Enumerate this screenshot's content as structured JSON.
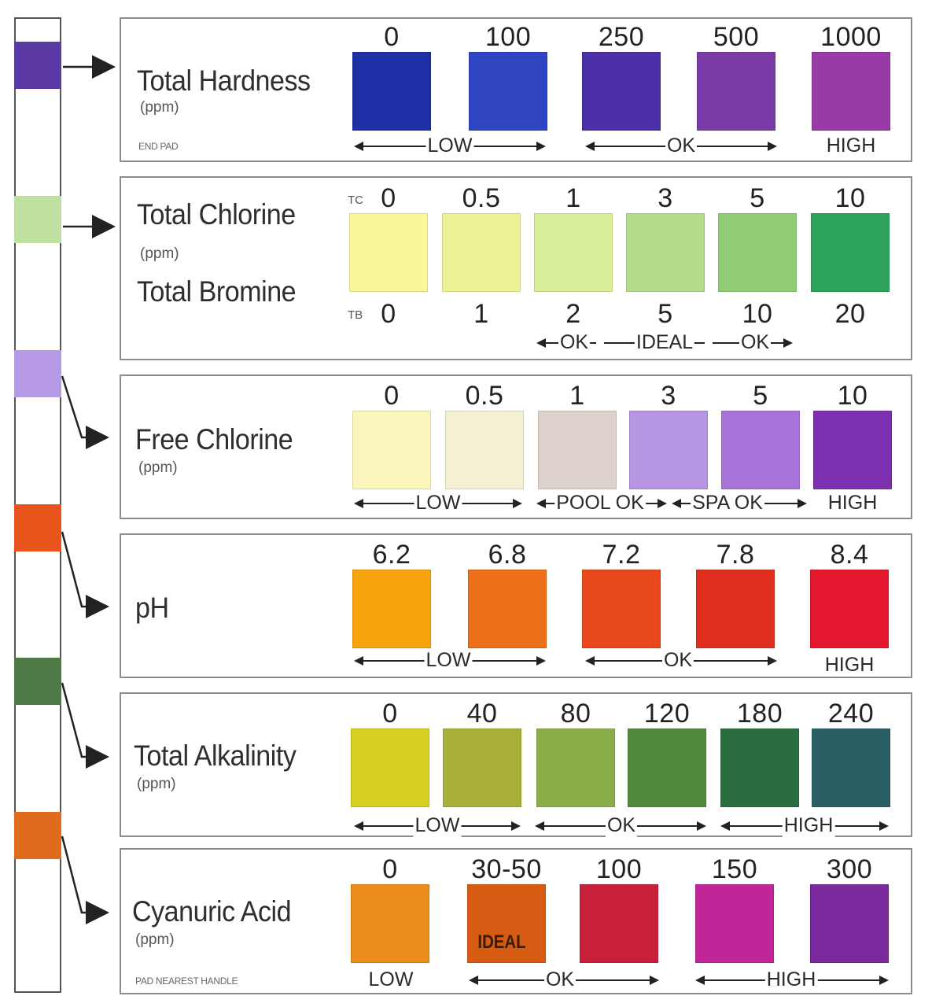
{
  "strip": {
    "pads": [
      {
        "name": "total-hardness",
        "color": "#5b3aa6"
      },
      {
        "name": "total-chlorine",
        "color": "#bfe0a0"
      },
      {
        "name": "free-chlorine",
        "color": "#b79ae6"
      },
      {
        "name": "ph",
        "color": "#e8551c"
      },
      {
        "name": "total-alkalinity",
        "color": "#4f7a46"
      },
      {
        "name": "cyanuric-acid",
        "color": "#e06a1e"
      }
    ]
  },
  "panels": [
    {
      "key": "total_hardness",
      "title": "Total Hardness",
      "unit": "(ppm)",
      "note": "END PAD",
      "values": [
        "0",
        "100",
        "250",
        "500",
        "1000"
      ],
      "colors": [
        "#1d2fa4",
        "#2f45c2",
        "#4a2fa8",
        "#7a3aa6",
        "#9a3aa8"
      ],
      "ranges": [
        "LOW",
        "OK",
        "HIGH"
      ]
    },
    {
      "key": "total_chlorine_bromine",
      "title": "Total Chlorine",
      "unit": "(ppm)",
      "title2": "Total Bromine",
      "tc_prefix": "TC",
      "tb_prefix": "TB",
      "tc_values": [
        "0",
        "0.5",
        "1",
        "3",
        "5",
        "10"
      ],
      "tb_values": [
        "0",
        "1",
        "2",
        "5",
        "10",
        "20"
      ],
      "colors": [
        "#f8f79a",
        "#eef296",
        "#d9ee98",
        "#b5dc8d",
        "#8fcc74",
        "#2ea35c"
      ],
      "ranges": [
        "OK",
        "IDEAL",
        "OK"
      ]
    },
    {
      "key": "free_chlorine",
      "title": "Free Chlorine",
      "unit": "(ppm)",
      "values": [
        "0",
        "0.5",
        "1",
        "3",
        "5",
        "10"
      ],
      "colors": [
        "#fbf6bc",
        "#f3f0d4",
        "#ddd2cc",
        "#b695e2",
        "#a873d8",
        "#7d30b0"
      ],
      "ranges": [
        "LOW",
        "POOL OK",
        "SPA OK",
        "HIGH"
      ]
    },
    {
      "key": "ph",
      "title": "pH",
      "values": [
        "6.2",
        "6.8",
        "7.2",
        "7.8",
        "8.4"
      ],
      "colors": [
        "#f7a30e",
        "#ec6f1a",
        "#e8481c",
        "#e02f1e",
        "#e3172d"
      ],
      "ranges": [
        "LOW",
        "OK",
        "HIGH"
      ]
    },
    {
      "key": "total_alkalinity",
      "title": "Total Alkalinity",
      "unit": "(ppm)",
      "values": [
        "0",
        "40",
        "80",
        "120",
        "180",
        "240"
      ],
      "colors": [
        "#d6cf22",
        "#a8b03a",
        "#8bae4a",
        "#4f8a3c",
        "#2a6e40",
        "#2b5f66"
      ],
      "ranges": [
        "LOW",
        "OK",
        "HIGH"
      ]
    },
    {
      "key": "cyanuric_acid",
      "title": "Cyanuric Acid",
      "unit": "(ppm)",
      "note": "PAD NEAREST HANDLE",
      "values": [
        "0",
        "30-50",
        "100",
        "150",
        "300"
      ],
      "colors": [
        "#eb8c1c",
        "#d65c14",
        "#c8203a",
        "#c0269a",
        "#7a2a9c"
      ],
      "ideal_tag": "IDEAL",
      "ranges": [
        "LOW",
        "OK",
        "HIGH"
      ]
    }
  ]
}
